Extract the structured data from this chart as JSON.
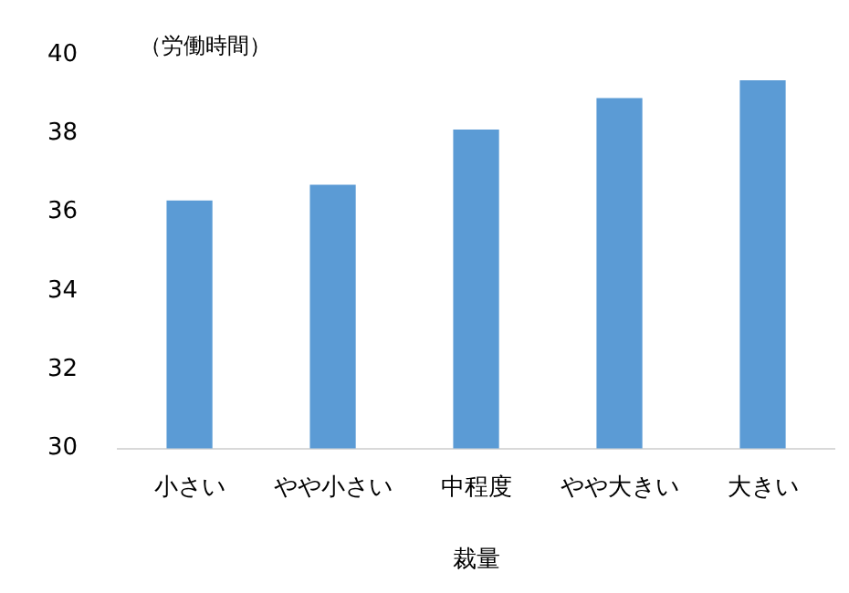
{
  "chart_data": {
    "type": "bar",
    "ylabel": "（労働時間）",
    "xlabel": "裁量",
    "categories": [
      "小さい",
      "やや小さい",
      "中程度",
      "やや大きい",
      "大きい"
    ],
    "values": [
      36.3,
      36.7,
      38.1,
      38.9,
      39.35
    ],
    "color": "#5b9bd5",
    "ylim": [
      30,
      40
    ],
    "yticks": [
      30,
      32,
      34,
      36,
      38,
      40
    ],
    "grid": false,
    "legend": false
  }
}
